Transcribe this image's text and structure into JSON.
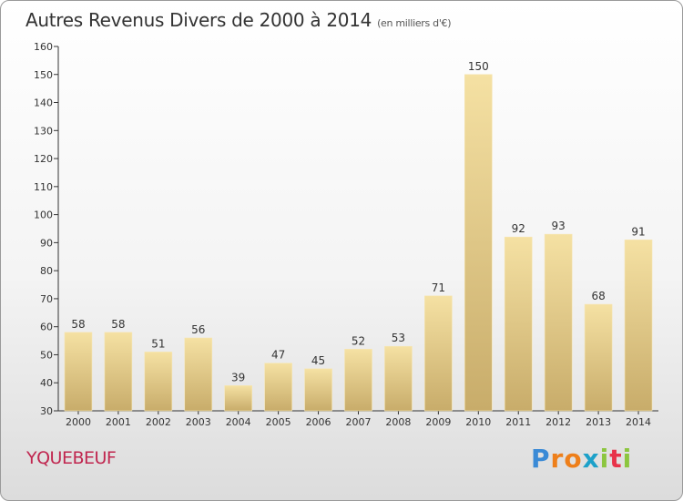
{
  "title": "Autres Revenus Divers de 2000 à 2014",
  "subtitle": "(en milliers d'€)",
  "town": "YQUEBEUF",
  "logo": {
    "letters": [
      "P",
      "r",
      "o",
      "x",
      "i",
      "t",
      "i"
    ],
    "colors": [
      "#3a8ad6",
      "#ee7f1a",
      "#ee7f1a",
      "#1da1c9",
      "#8cc63f",
      "#e8334a",
      "#8cc63f"
    ]
  },
  "chart_data": {
    "type": "bar",
    "categories": [
      "2000",
      "2001",
      "2002",
      "2003",
      "2004",
      "2005",
      "2006",
      "2007",
      "2008",
      "2009",
      "2010",
      "2011",
      "2012",
      "2013",
      "2014"
    ],
    "values": [
      58,
      58,
      51,
      56,
      39,
      47,
      45,
      52,
      53,
      71,
      150,
      92,
      93,
      68,
      91
    ],
    "ylim": [
      30,
      160
    ],
    "yticks": [
      30,
      40,
      50,
      60,
      70,
      80,
      90,
      100,
      110,
      120,
      130,
      140,
      150,
      160
    ],
    "grid": false,
    "bar_color": "#e8cc84"
  }
}
